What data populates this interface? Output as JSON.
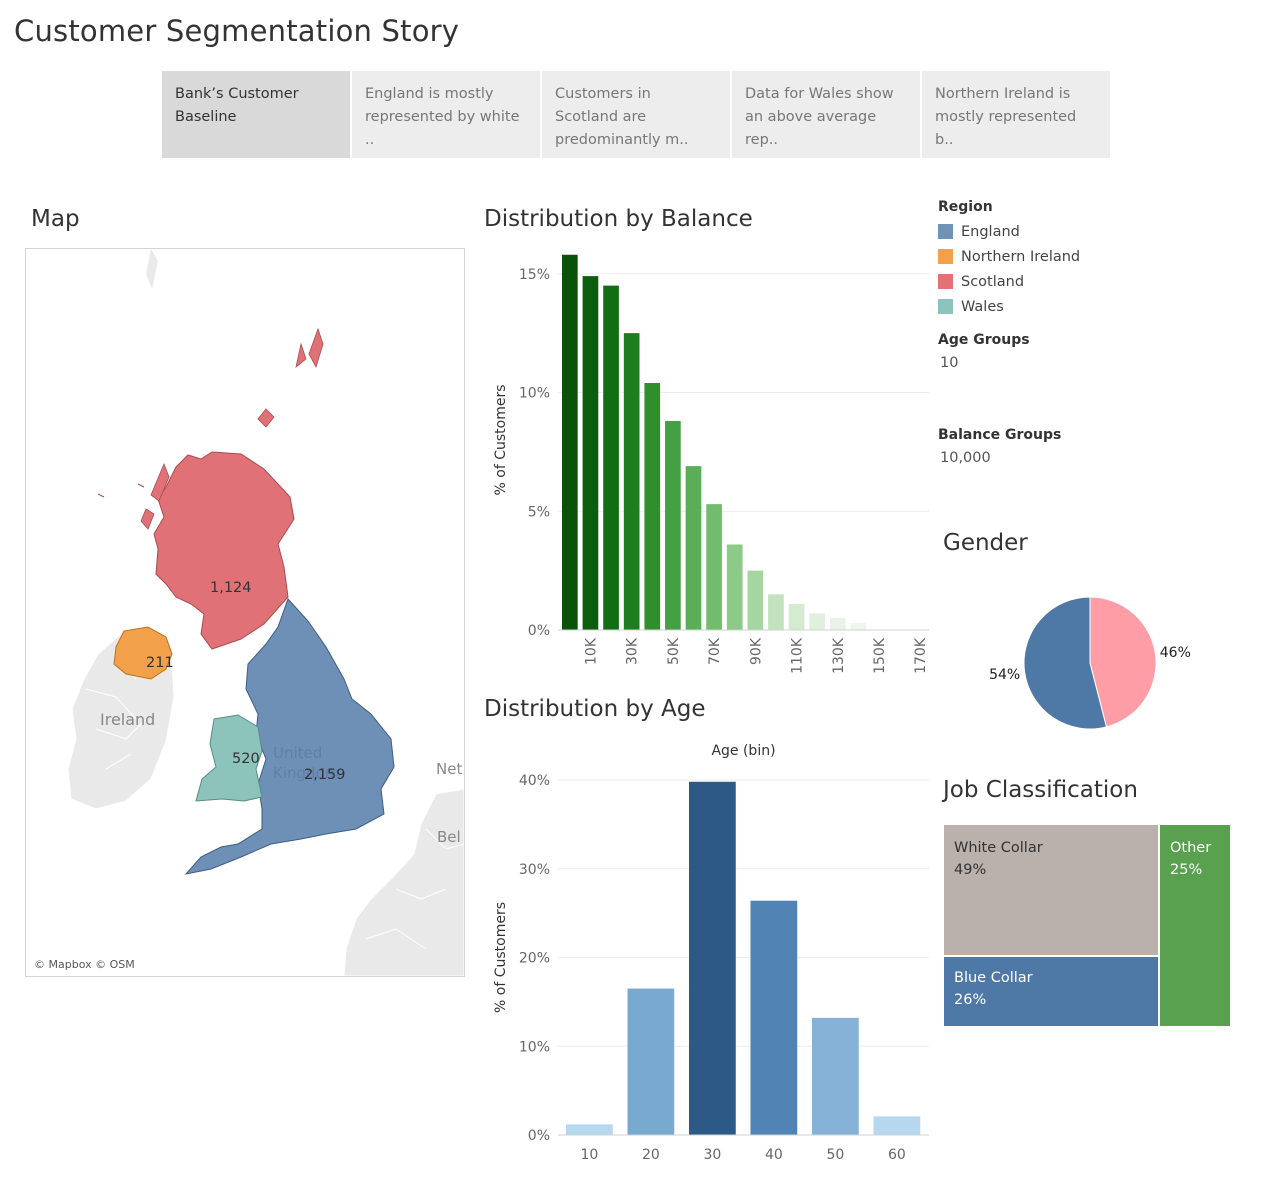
{
  "story": {
    "title": "Customer Segmentation Story",
    "points": [
      {
        "label": "Bank’s Customer Baseline",
        "active": true
      },
      {
        "label": "England is mostly represented by white ..",
        "active": false
      },
      {
        "label": "Customers in Scotland are predominantly m..",
        "active": false
      },
      {
        "label": "Data for Wales show an above average rep..",
        "active": false
      },
      {
        "label": "Northern Ireland is mostly represented b..",
        "active": false
      }
    ]
  },
  "map": {
    "title": "Map",
    "labels": {
      "ireland": "Ireland",
      "united_kingdom": "United Kingdom",
      "netherlands": "Net",
      "belgium": "Bel"
    },
    "values": {
      "scotland": "1,124",
      "northern_ireland": "211",
      "wales": "520",
      "england": "2,159"
    },
    "attribution": "© Mapbox © OSM"
  },
  "legend": {
    "region_title": "Region",
    "regions": [
      {
        "name": "England",
        "color": "#7092b7"
      },
      {
        "name": "Northern Ireland",
        "color": "#f2a04a"
      },
      {
        "name": "Scotland",
        "color": "#e37176"
      },
      {
        "name": "Wales",
        "color": "#8cc3bb"
      }
    ],
    "age_groups_label": "Age Groups",
    "age_groups_value": "10",
    "balance_groups_label": "Balance Groups",
    "balance_groups_value": "10,000"
  },
  "balance_chart": {
    "title": "Distribution by Balance"
  },
  "age_chart": {
    "title": "Distribution by Age"
  },
  "gender_chart": {
    "title": "Gender"
  },
  "job_chart": {
    "title": "Job Classification"
  },
  "chart_data": [
    {
      "type": "bar",
      "title": "Distribution by Balance",
      "ylabel": "% of Customers",
      "xlabel": "",
      "ylim": [
        0,
        16
      ],
      "yticks": [
        "0%",
        "5%",
        "10%",
        "15%"
      ],
      "ytick_values": [
        0,
        5,
        10,
        15
      ],
      "categories": [
        0,
        10,
        20,
        30,
        40,
        50,
        60,
        70,
        80,
        90,
        100,
        110,
        120,
        130,
        140,
        150,
        160,
        170
      ],
      "xtick_labels": [
        "10K",
        "30K",
        "50K",
        "70K",
        "90K",
        "110K",
        "130K",
        "150K",
        "170K"
      ],
      "xtick_values": [
        10,
        30,
        50,
        70,
        90,
        110,
        130,
        150,
        170
      ],
      "values": [
        15.8,
        14.9,
        14.5,
        12.5,
        10.4,
        8.8,
        6.9,
        5.3,
        3.6,
        2.5,
        1.5,
        1.1,
        0.7,
        0.5,
        0.3,
        0.0,
        0.0,
        0.0
      ],
      "colors": [
        "#0b5209",
        "#0b5e0d",
        "#136d14",
        "#1e7e1f",
        "#2f8f2d",
        "#45a043",
        "#5aae57",
        "#72bc6e",
        "#8dc987",
        "#a6d6a0",
        "#c1e2bc",
        "#d5ebd1",
        "#e1f0de",
        "#e8f3e6",
        "#edf6eb",
        "#f1f7ef",
        "#f3f8f2",
        "#f5f9f4"
      ],
      "grid": true
    },
    {
      "type": "bar",
      "title": "Distribution by Age",
      "xlabel": "Age (bin)",
      "ylabel": "% of Customers",
      "ylim": [
        0,
        40
      ],
      "yticks": [
        "0%",
        "10%",
        "20%",
        "30%",
        "40%"
      ],
      "ytick_values": [
        0,
        10,
        20,
        30,
        40
      ],
      "categories": [
        "10",
        "20",
        "30",
        "40",
        "50",
        "60"
      ],
      "values": [
        1.2,
        16.5,
        39.8,
        26.4,
        13.2,
        2.1
      ],
      "colors": [
        "#b6d8ee",
        "#78a9cf",
        "#2c5985",
        "#5183b5",
        "#86b2d7",
        "#b6d8ee"
      ],
      "grid": true
    },
    {
      "type": "pie",
      "title": "Gender",
      "slices": [
        {
          "label": "54%",
          "value": 54,
          "color": "#4e79a7"
        },
        {
          "label": "46%",
          "value": 46,
          "color": "#ff9da7"
        }
      ]
    },
    {
      "type": "treemap",
      "title": "Job Classification",
      "items": [
        {
          "name": "White Collar",
          "pct": "49%",
          "value": 49,
          "color": "#bab0ac"
        },
        {
          "name": "Blue Collar",
          "pct": "26%",
          "value": 26,
          "color": "#4e79a7"
        },
        {
          "name": "Other",
          "pct": "25%",
          "value": 25,
          "color": "#59a14f"
        }
      ]
    }
  ]
}
